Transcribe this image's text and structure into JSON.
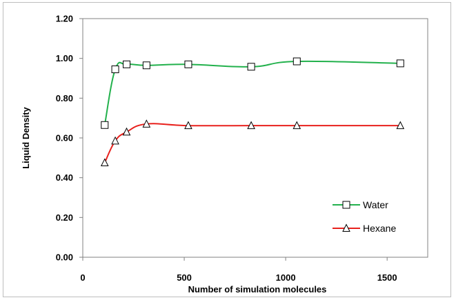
{
  "chart_data": {
    "type": "line",
    "xlabel": "Number of simulation molecules",
    "ylabel": "Liquid Density",
    "xlim": [
      0,
      1700
    ],
    "ylim": [
      0,
      1.2
    ],
    "x_ticks": [
      0,
      500,
      1000,
      1500
    ],
    "x_tick_labels": [
      "0",
      "500",
      "1000",
      "1500"
    ],
    "y_ticks": [
      0,
      0.2,
      0.4,
      0.6,
      0.8,
      1.0,
      1.2
    ],
    "y_tick_labels": [
      "0.00",
      "0.20",
      "0.40",
      "0.60",
      "0.80",
      "1.00",
      "1.20"
    ],
    "grid": false,
    "legend_position": "bottom-right",
    "series": [
      {
        "name": "Water",
        "color": "#22b14c",
        "marker": "square",
        "x": [
          108,
          160,
          216,
          314,
          520,
          830,
          1055,
          1565
        ],
        "y": [
          0.665,
          0.945,
          0.97,
          0.965,
          0.97,
          0.958,
          0.985,
          0.975
        ]
      },
      {
        "name": "Hexane",
        "color": "#e8201c",
        "marker": "triangle",
        "x": [
          108,
          160,
          216,
          314,
          520,
          830,
          1055,
          1565
        ],
        "y": [
          0.475,
          0.585,
          0.63,
          0.67,
          0.662,
          0.662,
          0.662,
          0.662
        ]
      }
    ]
  }
}
